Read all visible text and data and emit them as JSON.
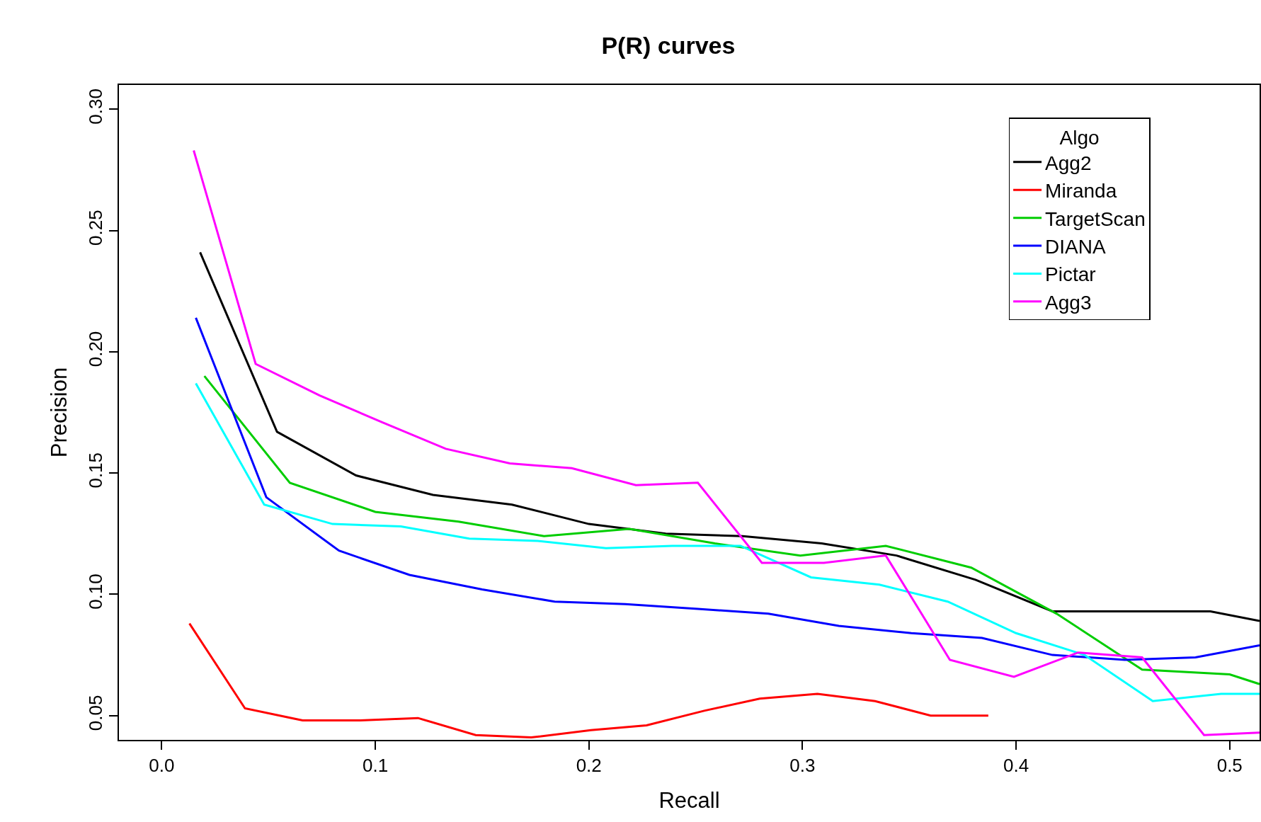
{
  "chart_data": {
    "type": "line",
    "title": "P(R) curves",
    "xlabel": "Recall",
    "ylabel": "Precision",
    "legend_title": "Algo",
    "legend": "top right",
    "grid": false,
    "xlim": [
      -0.02,
      0.514
    ],
    "ylim": [
      0.04,
      0.31
    ],
    "xticks": [
      {
        "value": 0,
        "label": "0.0"
      },
      0.1,
      0.2,
      0.3,
      0.4,
      0.5
    ],
    "yticks": [
      0.05,
      {
        "value": 0.1,
        "label": "0.10"
      },
      0.15,
      {
        "value": 0.2,
        "label": "0.20"
      },
      0.25,
      {
        "value": 0.3,
        "label": "0.30"
      }
    ],
    "series": [
      {
        "name": "Agg2",
        "color": "#000000",
        "x": [
          0.018,
          0.054,
          0.091,
          0.127,
          0.164,
          0.2,
          0.236,
          0.272,
          0.309,
          0.344,
          0.381,
          0.417,
          0.454,
          0.491,
          0.514
        ],
        "values": [
          0.241,
          0.167,
          0.149,
          0.141,
          0.137,
          0.129,
          0.125,
          0.124,
          0.121,
          0.116,
          0.106,
          0.093,
          0.093,
          0.093,
          0.089
        ]
      },
      {
        "name": "Miranda",
        "color": "#ff0000",
        "x": [
          0.013,
          0.039,
          0.066,
          0.093,
          0.12,
          0.147,
          0.173,
          0.201,
          0.227,
          0.254,
          0.28,
          0.307,
          0.334,
          0.36,
          0.387
        ],
        "values": [
          0.088,
          0.053,
          0.048,
          0.048,
          0.049,
          0.042,
          0.041,
          0.044,
          0.046,
          0.052,
          0.057,
          0.059,
          0.056,
          0.05,
          0.05
        ]
      },
      {
        "name": "TargetScan",
        "color": "#00cd00",
        "x": [
          0.02,
          0.06,
          0.1,
          0.139,
          0.179,
          0.219,
          0.259,
          0.299,
          0.339,
          0.379,
          0.419,
          0.459,
          0.5,
          0.514
        ],
        "values": [
          0.19,
          0.146,
          0.134,
          0.13,
          0.124,
          0.127,
          0.121,
          0.116,
          0.12,
          0.111,
          0.092,
          0.069,
          0.067,
          0.063
        ]
      },
      {
        "name": "DIANA",
        "color": "#0000ff",
        "x": [
          0.016,
          0.049,
          0.083,
          0.116,
          0.15,
          0.184,
          0.217,
          0.251,
          0.284,
          0.317,
          0.351,
          0.384,
          0.417,
          0.451,
          0.484,
          0.514
        ],
        "values": [
          0.214,
          0.14,
          0.118,
          0.108,
          0.102,
          0.097,
          0.096,
          0.094,
          0.092,
          0.087,
          0.084,
          0.082,
          0.075,
          0.073,
          0.074,
          0.079
        ]
      },
      {
        "name": "Pictar",
        "color": "#00ffff",
        "x": [
          0.016,
          0.048,
          0.08,
          0.112,
          0.144,
          0.176,
          0.208,
          0.239,
          0.271,
          0.304,
          0.336,
          0.368,
          0.4,
          0.432,
          0.464,
          0.496,
          0.514
        ],
        "values": [
          0.187,
          0.137,
          0.129,
          0.128,
          0.123,
          0.122,
          0.119,
          0.12,
          0.12,
          0.107,
          0.104,
          0.097,
          0.084,
          0.075,
          0.056,
          0.059,
          0.059
        ]
      },
      {
        "name": "Agg3",
        "color": "#ff00ff",
        "x": [
          0.015,
          0.044,
          0.074,
          0.103,
          0.133,
          0.163,
          0.192,
          0.222,
          0.251,
          0.281,
          0.31,
          0.339,
          0.369,
          0.399,
          0.429,
          0.459,
          0.488,
          0.514
        ],
        "values": [
          0.283,
          0.195,
          0.182,
          0.171,
          0.16,
          0.154,
          0.152,
          0.145,
          0.146,
          0.113,
          0.113,
          0.116,
          0.073,
          0.066,
          0.076,
          0.074,
          0.042,
          0.043
        ]
      }
    ]
  }
}
